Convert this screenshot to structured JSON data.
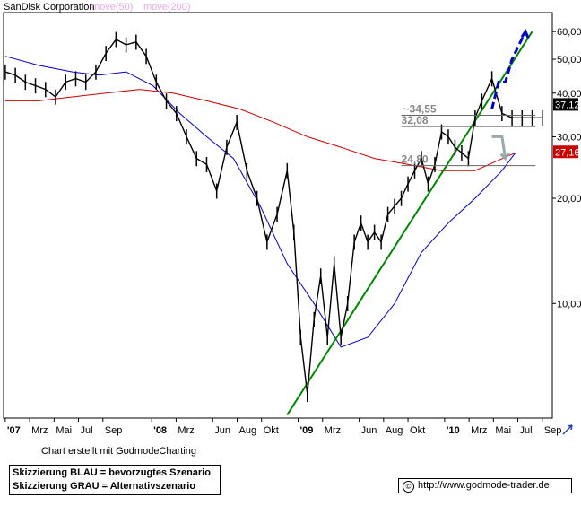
{
  "chart_data": {
    "type": "line",
    "title": "SanDisk Corporation",
    "legend": [
      {
        "name": "move(50)",
        "color": "#0000cc"
      },
      {
        "name": "move(200)",
        "color": "#cc0000"
      }
    ],
    "y_scale": "log",
    "ylim": [
      4.7,
      68
    ],
    "y_ticks": [
      "60,00",
      "50,00",
      "40,00",
      "30,00",
      "20,00",
      "10,00"
    ],
    "x_ticks": [
      "'07",
      "Mrz",
      "Mai",
      "Jul",
      "Sep",
      "'08",
      "Mrz",
      "Jun",
      "Aug",
      "Okt",
      "'09",
      "Mrz",
      "Jun",
      "Aug",
      "Okt",
      "'10",
      "Mrz",
      "Mai",
      "Jul",
      "Sep"
    ],
    "price_series": {
      "name": "SanDisk",
      "t": [
        0,
        3,
        6,
        9,
        12,
        15,
        18,
        21,
        24,
        27,
        30,
        33,
        36,
        39,
        42,
        45,
        48,
        51,
        54,
        57,
        60,
        63,
        66,
        69,
        72,
        75,
        78,
        81,
        84,
        86,
        88,
        90,
        92,
        94,
        96,
        98,
        100,
        102,
        104,
        106,
        108,
        110,
        112,
        114,
        116,
        118,
        120,
        122,
        124,
        126,
        128,
        130,
        132,
        134,
        136,
        138,
        140,
        142,
        145,
        148,
        151,
        154,
        157,
        160
      ],
      "values": [
        46,
        45,
        43,
        42,
        41,
        39,
        43,
        44,
        43,
        46,
        52,
        57,
        55,
        56,
        51,
        43,
        38,
        35,
        30,
        26,
        25,
        21,
        28,
        33,
        24,
        20,
        15,
        18,
        24,
        16,
        8,
        5.5,
        9,
        12,
        8,
        13,
        8,
        10,
        15,
        17,
        15,
        16,
        15,
        18,
        19,
        20,
        22,
        24,
        26,
        22,
        25,
        31,
        30,
        28,
        27,
        26,
        34,
        38,
        44,
        35,
        34,
        34,
        34,
        34
      ]
    },
    "ma50": {
      "t": [
        0,
        10,
        20,
        28,
        36,
        44,
        52,
        60,
        68,
        76,
        84,
        92,
        100,
        108,
        116,
        124,
        132,
        140,
        148,
        152
      ],
      "values": [
        51,
        48,
        46,
        45,
        46,
        42,
        35,
        30,
        26,
        19,
        13,
        10,
        7.5,
        8,
        10,
        14,
        17,
        20,
        24,
        27
      ]
    },
    "ma200": {
      "t": [
        0,
        10,
        20,
        30,
        40,
        50,
        60,
        70,
        80,
        90,
        100,
        110,
        120,
        130,
        140,
        152
      ],
      "values": [
        38,
        38,
        39,
        40,
        41,
        40,
        38,
        36,
        33,
        30,
        28,
        26,
        25,
        24,
        24,
        27
      ]
    },
    "annotations": [
      {
        "text": "~34,55",
        "value": 34.55
      },
      {
        "text": "32,08",
        "value": 32.08
      },
      {
        "text": "24,80",
        "value": 24.8
      }
    ],
    "value_badges": [
      {
        "text": "37,12",
        "value": 37.12,
        "color": "#000000"
      },
      {
        "text": "27,16",
        "value": 27.16,
        "color": "#cc0000"
      }
    ],
    "trendline": {
      "from": {
        "t": 84,
        "value": 4.8
      },
      "to": {
        "t": 157,
        "value": 60
      }
    },
    "scenario_blue": {
      "color": "#0000cc",
      "points": [
        {
          "t": 145,
          "value": 36
        },
        {
          "t": 147,
          "value": 43
        },
        {
          "t": 149,
          "value": 43
        },
        {
          "t": 151,
          "value": 50
        },
        {
          "t": 155,
          "value": 60
        }
      ]
    },
    "scenario_gray": {
      "color": "#99aaaa",
      "points": [
        {
          "t": 145,
          "value": 30
        },
        {
          "t": 148,
          "value": 30
        },
        {
          "t": 149,
          "value": 26
        }
      ]
    }
  },
  "footer": {
    "credit": "Chart erstellt mit GodmodeCharting",
    "legend_blue": "Skizzierung BLAU = bevorzugtes Szenario",
    "legend_gray": "Skizzierung GRAU = Alternativszenario",
    "url": "http://www.godmode-trader.de",
    "copyright_symbol": "©"
  }
}
